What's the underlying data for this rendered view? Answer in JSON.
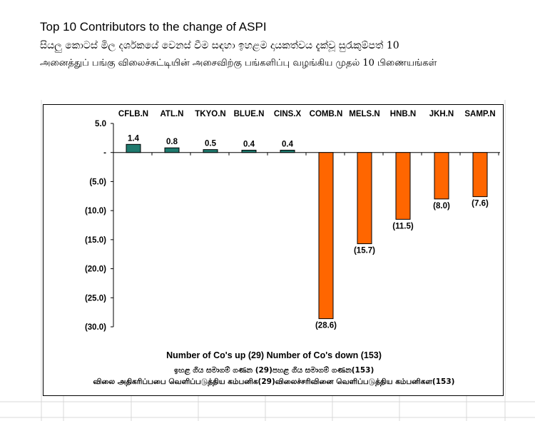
{
  "title_en": "Top 10 Contributors to the change of ASPI",
  "title_si": "සියලු කොටස් මිල දර්ශකයේ වෙනස් වීම සඳහා ඉහළම දායකත්වය දැක්වූ සුරැකුම්පත් 10",
  "title_ta": "அனைத்துப் பங்கு விலைச்சுட்டியின் அசைவிற்கு பங்களிப்பு வழங்கிய முதல் 10 பிணையங்கள்",
  "footer": {
    "en": "Number of Co's up (29) Number of Co's down  (153)",
    "si_a": "ඉහළ ගිය සමාගම් ගණන (29)",
    "si_b": "පහළ ගිය සමාගම් ගණන(153)",
    "ta_a": "விலை அதிகரிப்பபை வெளிப்படுத்திய கம்பனிக(29)",
    "ta_b": "விலைச்சரிவினை வெளிப்படுத்திய கம்பனிகள(153)"
  },
  "colors": {
    "up_bar": "#1f7a6e",
    "down_bar": "#ff6600",
    "bar_stroke": "#000000"
  },
  "chart_data": {
    "type": "bar",
    "title": "Top 10 Contributors to the change of ASPI",
    "categories": [
      "CFLB.N",
      "ATL.N",
      "TKYO.N",
      "BLUE.N",
      "CINS.X",
      "COMB.N",
      "MELS.N",
      "HNB.N",
      "JKH.N",
      "SAMP.N"
    ],
    "values": [
      1.4,
      0.8,
      0.5,
      0.4,
      0.4,
      -28.6,
      -15.7,
      -11.5,
      -8.0,
      -7.6
    ],
    "data_labels": [
      "1.4",
      "0.8",
      "0.5",
      "0.4",
      "0.4",
      "(28.6)",
      "(15.7)",
      "(11.5)",
      "(8.0)",
      "(7.6)"
    ],
    "yticks": [
      5.0,
      0,
      -5.0,
      -10.0,
      -15.0,
      -20.0,
      -25.0,
      -30.0
    ],
    "ytick_labels": [
      "5.0",
      "-",
      "(5.0)",
      "(10.0)",
      "(15.0)",
      "(20.0)",
      "(25.0)",
      "(30.0)"
    ],
    "ylim": [
      -30,
      5
    ],
    "xlabel": "",
    "ylabel": "",
    "category_labels_position": "top"
  }
}
